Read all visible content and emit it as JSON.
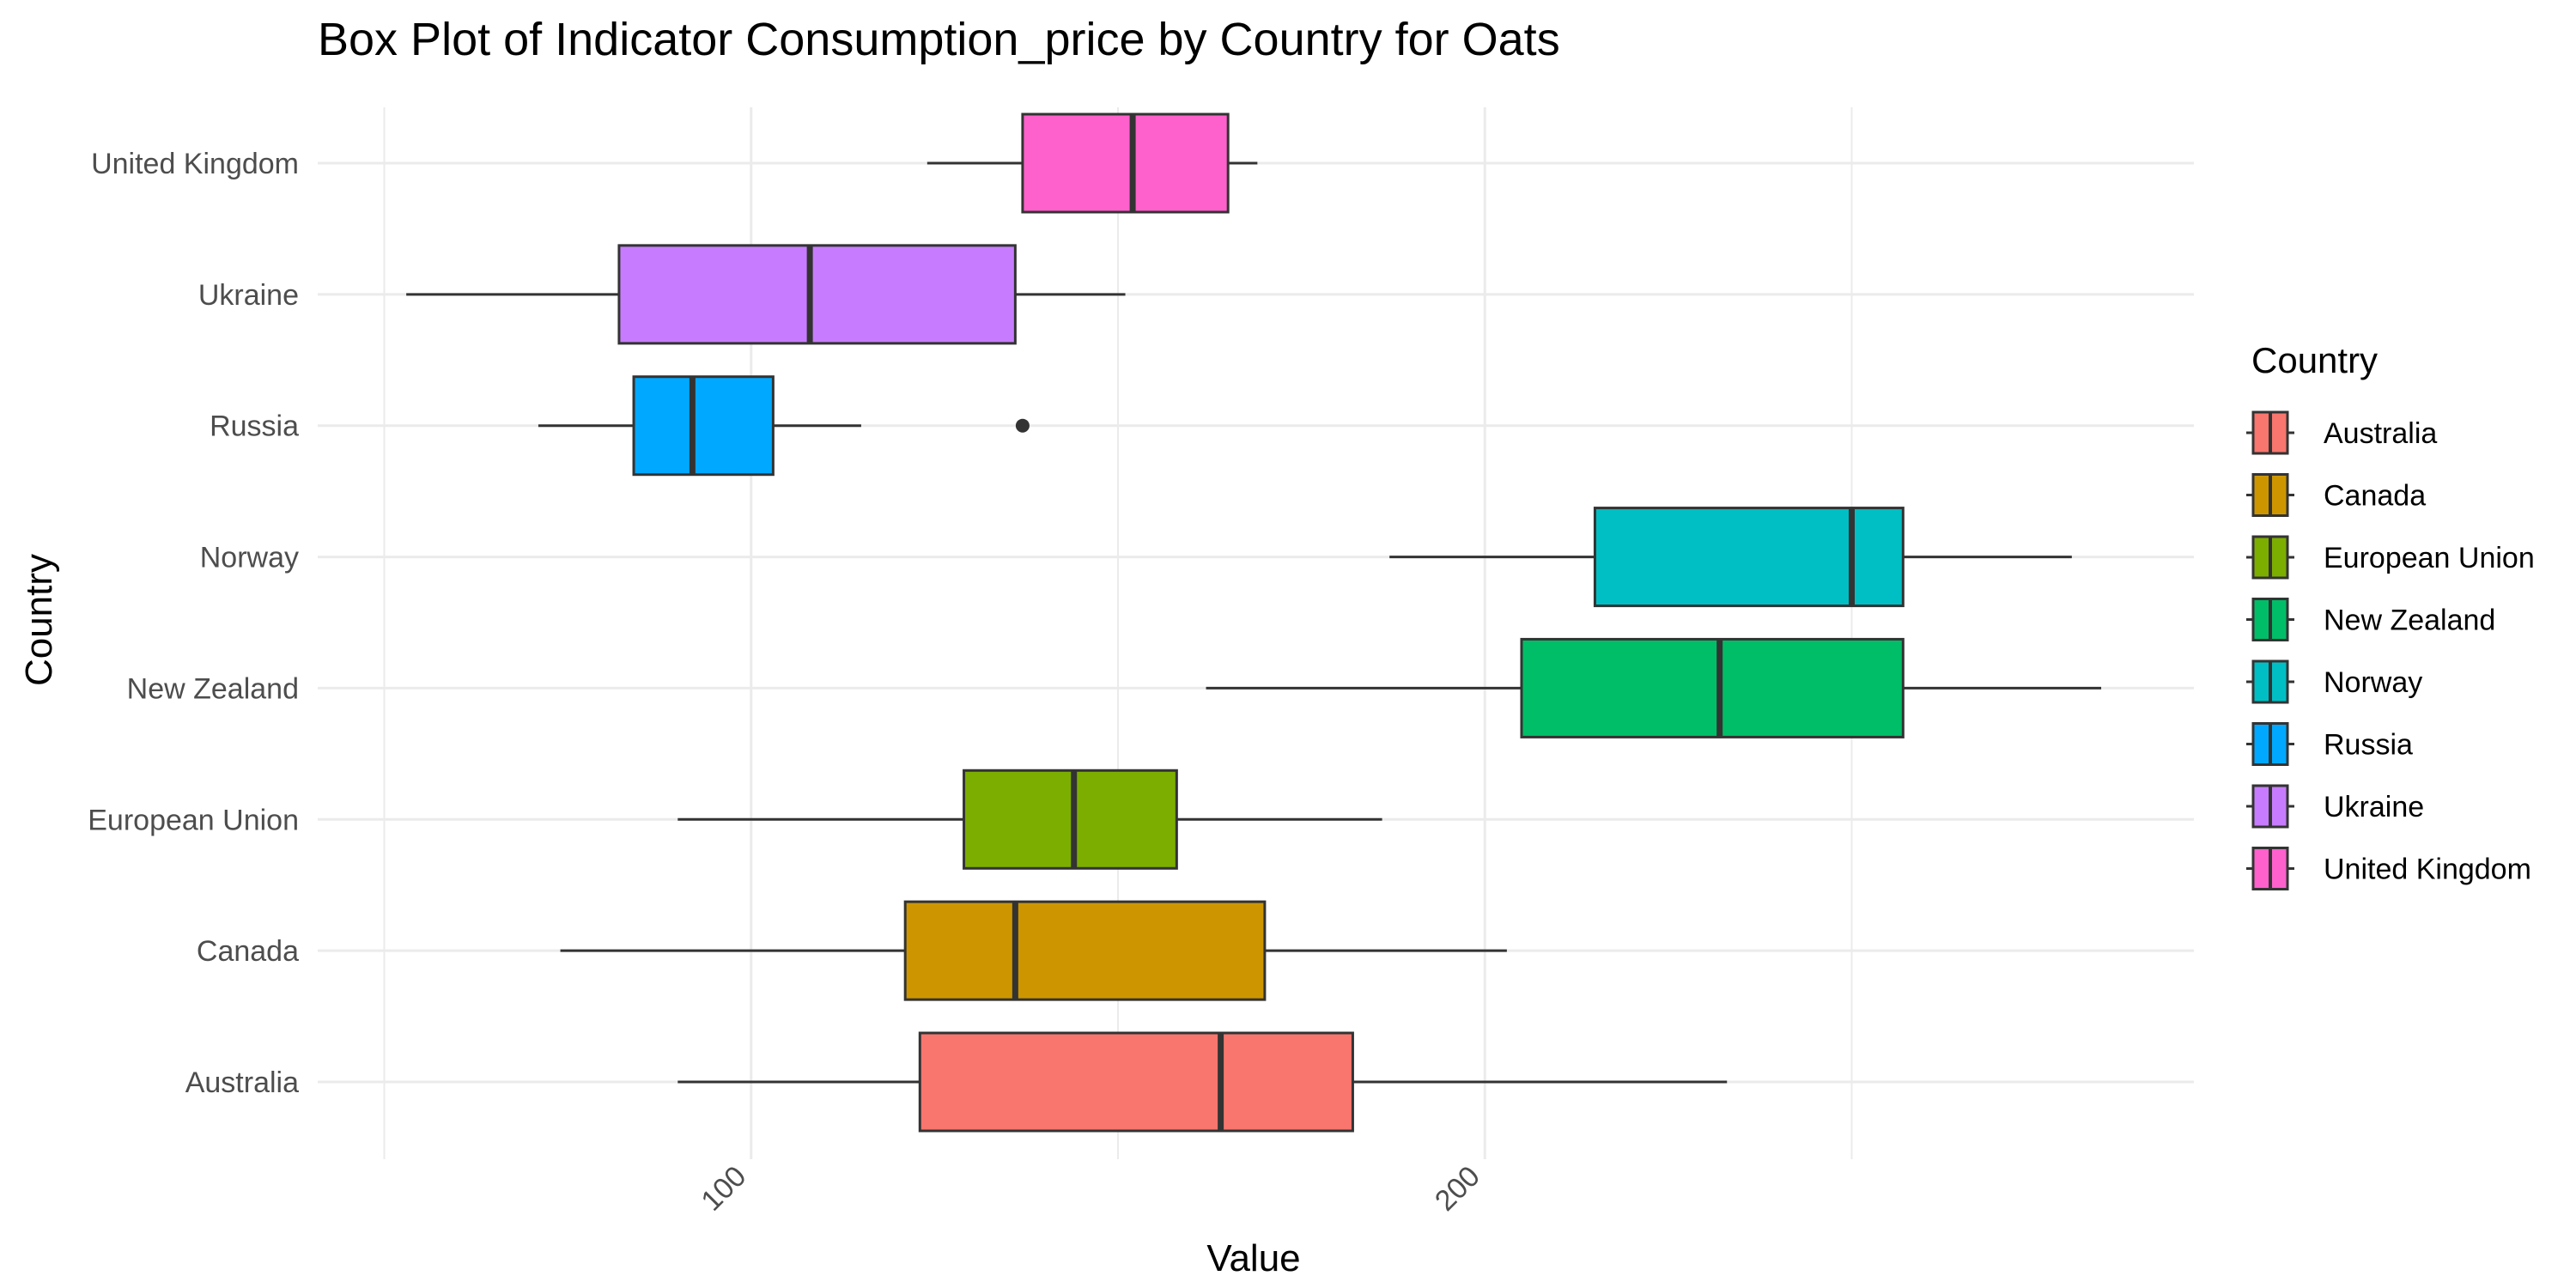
{
  "chart_data": {
    "type": "box",
    "title": "Box Plot of Indicator Consumption_price by Country for Oats",
    "xlabel": "Value",
    "ylabel": "Country",
    "xlim": [
      50,
      300
    ],
    "x_ticks": [
      100,
      200
    ],
    "x_tick_labels": [
      "100",
      "200"
    ],
    "x_minor_ticks": [
      50,
      150,
      250
    ],
    "grid": true,
    "legend": {
      "title": "Country",
      "position": "right"
    },
    "categories": [
      "Australia",
      "Canada",
      "European Union",
      "New Zealand",
      "Norway",
      "Russia",
      "Ukraine",
      "United Kingdom"
    ],
    "series": [
      {
        "name": "Australia",
        "color": "#F8766D",
        "whisker_low": 90,
        "q1": 123,
        "median": 164,
        "q3": 182,
        "whisker_high": 233,
        "outliers": []
      },
      {
        "name": "Canada",
        "color": "#CD9600",
        "whisker_low": 74,
        "q1": 121,
        "median": 136,
        "q3": 170,
        "whisker_high": 203,
        "outliers": []
      },
      {
        "name": "European Union",
        "color": "#7CAE00",
        "whisker_low": 90,
        "q1": 129,
        "median": 144,
        "q3": 158,
        "whisker_high": 186,
        "outliers": []
      },
      {
        "name": "New Zealand",
        "color": "#00BE67",
        "whisker_low": 162,
        "q1": 205,
        "median": 232,
        "q3": 257,
        "whisker_high": 284,
        "outliers": []
      },
      {
        "name": "Norway",
        "color": "#00BFC4",
        "whisker_low": 187,
        "q1": 215,
        "median": 250,
        "q3": 257,
        "whisker_high": 280,
        "outliers": []
      },
      {
        "name": "Russia",
        "color": "#00A9FF",
        "whisker_low": 71,
        "q1": 84,
        "median": 92,
        "q3": 103,
        "whisker_high": 115,
        "outliers": [
          137
        ]
      },
      {
        "name": "Ukraine",
        "color": "#C77CFF",
        "whisker_low": 53,
        "q1": 82,
        "median": 108,
        "q3": 136,
        "whisker_high": 151,
        "outliers": []
      },
      {
        "name": "United Kingdom",
        "color": "#FF61CC",
        "whisker_low": 124,
        "q1": 137,
        "median": 152,
        "q3": 165,
        "whisker_high": 169,
        "outliers": []
      }
    ]
  }
}
